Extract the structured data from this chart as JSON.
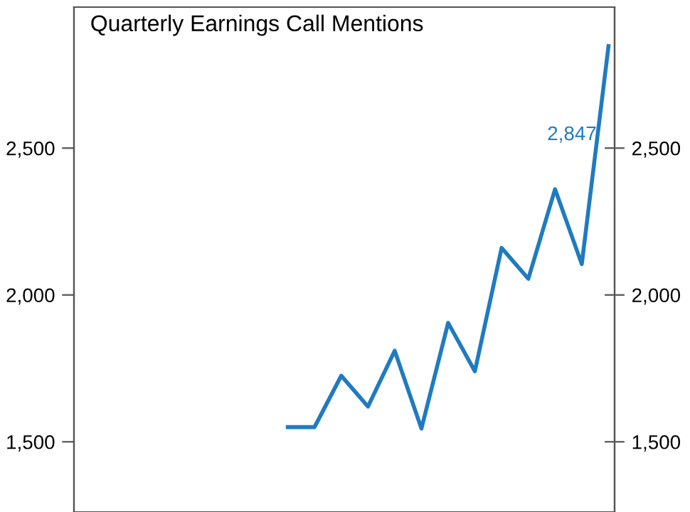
{
  "chart_data": {
    "type": "line",
    "title": "Quarterly Earnings Call Mentions",
    "categories": [
      null,
      null,
      null,
      null,
      null,
      null,
      null,
      null,
      null,
      null,
      null,
      null,
      null,
      null,
      null,
      null,
      null,
      null,
      null,
      null,
      null
    ],
    "series": [
      {
        "color": "#1f7bc1",
        "values": [
          null,
          null,
          null,
          null,
          null,
          null,
          null,
          null,
          1550,
          1550,
          1725,
          1620,
          1810,
          1545,
          1905,
          1740,
          2160,
          2055,
          2360,
          2105,
          2847
        ]
      }
    ],
    "annotations": [
      {
        "text": "2,847"
      }
    ],
    "ylim": [
      1261,
      2980
    ],
    "yticks": [
      {
        "value": 1500,
        "label": "1,500"
      },
      {
        "value": 2000,
        "label": "2,000"
      },
      {
        "value": 2500,
        "label": "2,500"
      }
    ],
    "y2lim": [
      1261,
      2980
    ],
    "y2ticks": [
      {
        "value": 1500,
        "label": "1,500"
      },
      {
        "value": 2000,
        "label": "2,000"
      },
      {
        "value": 2500,
        "label": "2,500"
      }
    ],
    "tick_labels": "y",
    "grid": false,
    "legend": false,
    "marker": "none",
    "line_style": "solid"
  }
}
